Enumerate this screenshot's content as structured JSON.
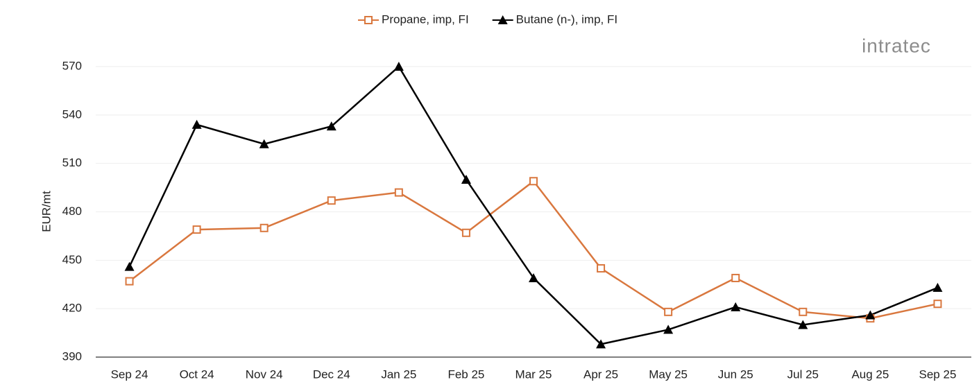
{
  "chart_data": {
    "type": "line",
    "y_label": "EUR/mt",
    "logo": "intratec",
    "categories": [
      "Sep 24",
      "Oct 24",
      "Nov 24",
      "Dec 24",
      "Jan 25",
      "Feb 25",
      "Mar 25",
      "Apr 25",
      "May 25",
      "Jun 25",
      "Jul 25",
      "Aug 25",
      "Sep 25"
    ],
    "series": [
      {
        "name": "Propane, imp, FI",
        "color": "#d9773e",
        "marker": "square",
        "values": [
          437,
          469,
          470,
          487,
          492,
          467,
          499,
          445,
          418,
          439,
          418,
          414,
          423
        ]
      },
      {
        "name": "Butane (n-), imp, FI",
        "color": "#000000",
        "marker": "triangle",
        "values": [
          446,
          534,
          522,
          533,
          570,
          500,
          439,
          398,
          407,
          421,
          410,
          416,
          433
        ]
      }
    ],
    "ylim": [
      390,
      570
    ],
    "yticks": [
      390,
      420,
      450,
      480,
      510,
      540,
      570
    ],
    "grid": true,
    "legend": "top"
  }
}
